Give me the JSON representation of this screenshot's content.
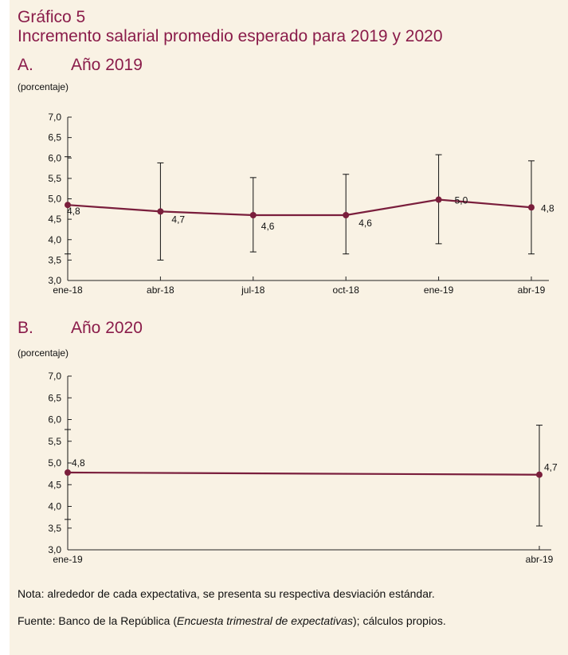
{
  "figure": {
    "title_line1": "Gráfico 5",
    "title_line2": "Incremento salarial promedio esperado para 2019 y 2020"
  },
  "colors": {
    "title": "#8a1c4a",
    "series": "#7a1e3c",
    "background": "#f9f2e4"
  },
  "chart_data": [
    {
      "type": "line",
      "panel_letter": "A.",
      "title": "Año 2019",
      "ylabel": "(porcentaje)",
      "categories": [
        "ene-18",
        "abr-18",
        "jul-18",
        "oct-18",
        "ene-19",
        "abr-19"
      ],
      "values": [
        4.85,
        4.69,
        4.6,
        4.6,
        4.98,
        4.79
      ],
      "value_labels": [
        "4,8",
        "4,7",
        "4,6",
        "4,6",
        "5,0",
        "4,8"
      ],
      "error_low": [
        3.65,
        3.5,
        3.7,
        3.65,
        3.9,
        3.65
      ],
      "error_high": [
        6.03,
        5.88,
        5.52,
        5.6,
        6.08,
        5.93
      ],
      "ylim": [
        3.0,
        7.0
      ],
      "yticks": [
        "3,0",
        "3,5",
        "4,0",
        "4,5",
        "5,0",
        "5,5",
        "6,0",
        "6,5",
        "7,0"
      ],
      "grid": false
    },
    {
      "type": "line",
      "panel_letter": "B.",
      "title": "Año 2020",
      "ylabel": "(porcentaje)",
      "categories": [
        "ene-19",
        "abr-19"
      ],
      "values": [
        4.78,
        4.73
      ],
      "value_labels": [
        "4,8",
        "4,7"
      ],
      "error_low": [
        3.7,
        3.55
      ],
      "error_high": [
        5.77,
        5.87
      ],
      "ylim": [
        3.0,
        7.0
      ],
      "yticks": [
        "3,0",
        "3,5",
        "4,0",
        "4,5",
        "5,0",
        "5,5",
        "6,0",
        "6,5",
        "7,0"
      ],
      "grid": false
    }
  ],
  "notes": {
    "nota": "Nota: alrededor de cada expectativa, se presenta su respectiva desviación estándar.",
    "fuente_prefix": "Fuente: Banco de la República (",
    "fuente_italic": "Encuesta trimestral de expectativas",
    "fuente_suffix": "); cálculos propios."
  }
}
